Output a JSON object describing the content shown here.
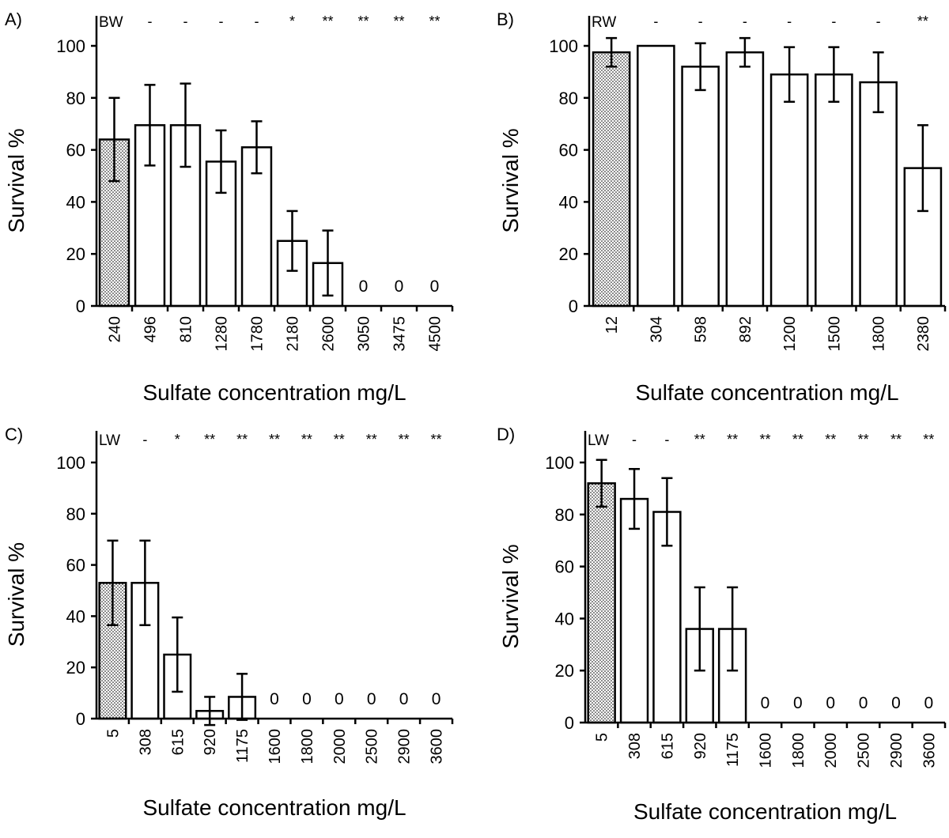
{
  "figure": {
    "panels": [
      {
        "id": "A",
        "panel_label": "A)",
        "chart_data": {
          "type": "bar",
          "title": "",
          "xlabel": "Sulfate concentration mg/L",
          "ylabel": "Survival %",
          "ylim": [
            0,
            100
          ],
          "yticks": [
            0,
            20,
            40,
            60,
            80,
            100
          ],
          "baseline_name": "BW",
          "categories": [
            "240",
            "496",
            "810",
            "1280",
            "1780",
            "2180",
            "2600",
            "3050",
            "3475",
            "4500"
          ],
          "values": [
            64,
            69.5,
            69.5,
            55.5,
            61,
            25,
            16.5,
            0,
            0,
            0
          ],
          "errors": [
            16,
            15.5,
            16,
            12,
            10,
            11.5,
            12.5,
            0,
            0,
            0
          ],
          "control_index": 0,
          "markers": [
            "",
            "-",
            "-",
            "-",
            "-",
            "*",
            "**",
            "**",
            "**",
            "**"
          ],
          "zero_labels": [
            "",
            "",
            "",
            "",
            "",
            "",
            "",
            "0",
            "0",
            "0"
          ]
        }
      },
      {
        "id": "B",
        "panel_label": "B)",
        "chart_data": {
          "type": "bar",
          "title": "",
          "xlabel": "Sulfate concentration mg/L",
          "ylabel": "Survival %",
          "ylim": [
            0,
            100
          ],
          "yticks": [
            0,
            20,
            40,
            60,
            80,
            100
          ],
          "baseline_name": "RW",
          "categories": [
            "12",
            "304",
            "598",
            "892",
            "1200",
            "1500",
            "1800",
            "2380"
          ],
          "values": [
            97.5,
            100,
            92,
            97.5,
            89,
            89,
            86,
            53
          ],
          "errors": [
            5.5,
            0,
            9,
            5.5,
            10.5,
            10.5,
            11.5,
            16.5
          ],
          "control_index": 0,
          "markers": [
            "",
            "-",
            "-",
            "-",
            "-",
            "-",
            "-",
            "**"
          ],
          "zero_labels": [
            "",
            "",
            "",
            "",
            "",
            "",
            "",
            ""
          ]
        }
      },
      {
        "id": "C",
        "panel_label": "C)",
        "chart_data": {
          "type": "bar",
          "title": "",
          "xlabel": "Sulfate concentration mg/L",
          "ylabel": "Survival %",
          "ylim": [
            0,
            100
          ],
          "yticks": [
            0,
            20,
            40,
            60,
            80,
            100
          ],
          "baseline_name": "LW",
          "categories": [
            "5",
            "308",
            "615",
            "920",
            "1175",
            "1600",
            "1800",
            "2000",
            "2500",
            "2900",
            "3600"
          ],
          "values": [
            53,
            53,
            25,
            3,
            8.5,
            0,
            0,
            0,
            0,
            0,
            0
          ],
          "errors": [
            16.5,
            16.5,
            14.5,
            5.5,
            9,
            0,
            0,
            0,
            0,
            0,
            0
          ],
          "control_index": 0,
          "markers": [
            "",
            "-",
            "*",
            "**",
            "**",
            "**",
            "**",
            "**",
            "**",
            "**",
            "**"
          ],
          "zero_labels": [
            "",
            "",
            "",
            "",
            "",
            "0",
            "0",
            "0",
            "0",
            "0",
            "0"
          ]
        }
      },
      {
        "id": "D",
        "panel_label": "D)",
        "chart_data": {
          "type": "bar",
          "title": "",
          "xlabel": "Sulfate concentration mg/L",
          "ylabel": "Survival %",
          "ylim": [
            0,
            100
          ],
          "yticks": [
            0,
            20,
            40,
            60,
            80,
            100
          ],
          "baseline_name": "LW",
          "categories": [
            "5",
            "308",
            "615",
            "920",
            "1175",
            "1600",
            "1800",
            "2000",
            "2500",
            "2900",
            "3600"
          ],
          "values": [
            92,
            86,
            81,
            36,
            36,
            0,
            0,
            0,
            0,
            0,
            0
          ],
          "errors": [
            9,
            11.5,
            13,
            16,
            16,
            0,
            0,
            0,
            0,
            0,
            0
          ],
          "control_index": 0,
          "markers": [
            "",
            "-",
            "-",
            "**",
            "**",
            "**",
            "**",
            "**",
            "**",
            "**",
            "**"
          ],
          "zero_labels": [
            "",
            "",
            "",
            "",
            "",
            "0",
            "0",
            "0",
            "0",
            "0",
            "0"
          ]
        }
      }
    ]
  }
}
